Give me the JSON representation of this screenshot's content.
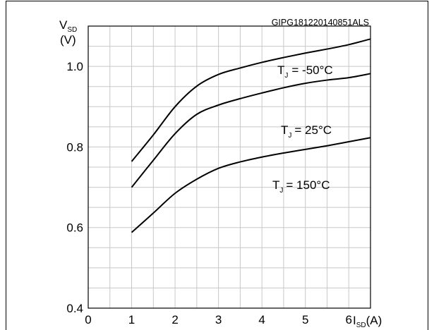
{
  "chart_data": {
    "type": "line",
    "code_label": "GIPG181220140851ALS",
    "ylabel": {
      "main": "V",
      "sub": "SD",
      "unit": "(V)"
    },
    "xlabel": {
      "main": "I",
      "sub": "SD",
      "unit": "(A)"
    },
    "xlim": [
      0,
      6.5
    ],
    "ylim": [
      0.4,
      1.1
    ],
    "x_ticks": [
      "0",
      "1",
      "2",
      "3",
      "4",
      "5",
      "6"
    ],
    "y_ticks": [
      "0.4",
      "0.6",
      "0.8",
      "1.0"
    ],
    "x_tick_values": [
      0,
      1,
      2,
      3,
      4,
      5,
      6
    ],
    "y_tick_values": [
      0.4,
      0.6,
      0.8,
      1.0
    ],
    "grid": true,
    "x_grid_step": 0.5,
    "y_grid_step": 0.05,
    "series": [
      {
        "name": "T_J = -50°C",
        "label_main": "T",
        "label_sub": "J",
        "label_rest": "= -50°C",
        "x": [
          1.0,
          1.5,
          2.0,
          2.5,
          3.0,
          3.5,
          4.0,
          4.5,
          5.0,
          5.5,
          6.0,
          6.5
        ],
        "y": [
          0.764,
          0.83,
          0.9,
          0.951,
          0.98,
          0.996,
          1.01,
          1.022,
          1.033,
          1.043,
          1.054,
          1.068
        ]
      },
      {
        "name": "T_J = 25°C",
        "label_main": "T",
        "label_sub": "J",
        "label_rest": "= 25°C",
        "x": [
          1.0,
          1.5,
          2.0,
          2.5,
          3.0,
          3.5,
          4.0,
          4.5,
          5.0,
          5.5,
          6.0,
          6.5
        ],
        "y": [
          0.7,
          0.767,
          0.833,
          0.881,
          0.904,
          0.92,
          0.934,
          0.947,
          0.958,
          0.966,
          0.972,
          0.982
        ]
      },
      {
        "name": "T_J = 150°C",
        "label_main": "T",
        "label_sub": "J",
        "label_rest": "= 150°C",
        "x": [
          1.0,
          1.5,
          2.0,
          2.5,
          3.0,
          3.5,
          4.0,
          4.5,
          5.0,
          5.5,
          6.0,
          6.5
        ],
        "y": [
          0.588,
          0.636,
          0.685,
          0.72,
          0.747,
          0.763,
          0.775,
          0.785,
          0.794,
          0.803,
          0.813,
          0.823
        ]
      }
    ]
  }
}
